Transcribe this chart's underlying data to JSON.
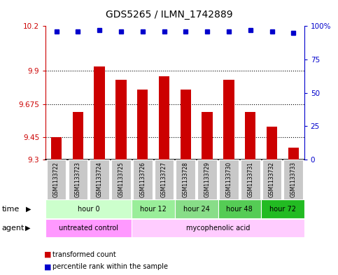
{
  "title": "GDS5265 / ILMN_1742889",
  "samples": [
    "GSM1133722",
    "GSM1133723",
    "GSM1133724",
    "GSM1133725",
    "GSM1133726",
    "GSM1133727",
    "GSM1133728",
    "GSM1133729",
    "GSM1133730",
    "GSM1133731",
    "GSM1133732",
    "GSM1133733"
  ],
  "bar_values": [
    9.45,
    9.62,
    9.93,
    9.84,
    9.77,
    9.86,
    9.77,
    9.62,
    9.84,
    9.62,
    9.52,
    9.38
  ],
  "percentile_values": [
    96,
    96,
    97,
    96,
    96,
    96,
    96,
    96,
    96,
    97,
    96,
    95
  ],
  "bar_color": "#cc0000",
  "dot_color": "#0000cc",
  "ylim_left": [
    9.3,
    10.2
  ],
  "ylim_right": [
    0,
    100
  ],
  "yticks_left": [
    9.3,
    9.45,
    9.675,
    9.9,
    10.2
  ],
  "yticks_right": [
    0,
    25,
    50,
    75,
    100
  ],
  "ytick_labels_left": [
    "9.3",
    "9.45",
    "9.675",
    "9.9",
    "10.2"
  ],
  "ytick_labels_right": [
    "0",
    "25",
    "50",
    "75",
    "100%"
  ],
  "hlines": [
    9.45,
    9.675,
    9.9
  ],
  "time_groups": [
    {
      "label": "hour 0",
      "start": 0,
      "end": 3,
      "color": "#ccffcc"
    },
    {
      "label": "hour 12",
      "start": 4,
      "end": 5,
      "color": "#99ee99"
    },
    {
      "label": "hour 24",
      "start": 6,
      "end": 7,
      "color": "#88dd88"
    },
    {
      "label": "hour 48",
      "start": 8,
      "end": 9,
      "color": "#55cc55"
    },
    {
      "label": "hour 72",
      "start": 10,
      "end": 11,
      "color": "#22bb22"
    }
  ],
  "agent_groups": [
    {
      "label": "untreated control",
      "start": 0,
      "end": 3,
      "color": "#ff99ff"
    },
    {
      "label": "mycophenolic acid",
      "start": 4,
      "end": 11,
      "color": "#ffccff"
    }
  ],
  "legend_bar_label": "transformed count",
  "legend_dot_label": "percentile rank within the sample",
  "bg_color": "#ffffff",
  "sample_box_color": "#c8c8c8",
  "plot_bg_color": "#ffffff"
}
